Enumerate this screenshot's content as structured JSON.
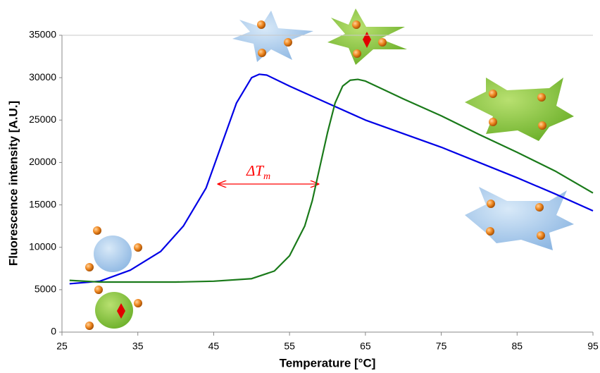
{
  "chart_data": {
    "type": "line",
    "x_label": "Temperature [°C]",
    "y_label": "Fluorescence intensity [A.U.]",
    "annotation": {
      "text": "ΔT",
      "subscript": "m",
      "color": "#ff0000"
    },
    "xlim": [
      25,
      95
    ],
    "xticks": [
      25,
      35,
      45,
      55,
      65,
      75,
      85,
      95
    ],
    "ylim": [
      0,
      35000
    ],
    "yticks": [
      0,
      5000,
      10000,
      15000,
      20000,
      25000,
      30000,
      35000
    ],
    "grid": false,
    "series": [
      {
        "color": "#0000e6",
        "x": [
          26,
          30,
          34,
          38,
          41,
          44,
          46,
          48,
          50,
          51,
          52,
          55,
          60,
          65,
          70,
          75,
          80,
          85,
          90,
          95
        ],
        "values": [
          5700,
          6000,
          7300,
          9500,
          12500,
          17000,
          22000,
          27000,
          30000,
          30400,
          30300,
          29000,
          27000,
          25000,
          23400,
          21800,
          20000,
          18200,
          16300,
          14300
        ]
      },
      {
        "color": "#1a7a1a",
        "x": [
          26,
          30,
          40,
          45,
          50,
          53,
          55,
          57,
          58,
          59,
          60,
          61,
          62,
          63,
          64,
          65,
          70,
          75,
          80,
          85,
          90,
          95
        ],
        "values": [
          6100,
          5900,
          5900,
          6000,
          6300,
          7200,
          9000,
          12500,
          15500,
          19500,
          23500,
          27000,
          29000,
          29700,
          29800,
          29600,
          27500,
          25500,
          23300,
          21200,
          19000,
          16400
        ]
      }
    ]
  }
}
